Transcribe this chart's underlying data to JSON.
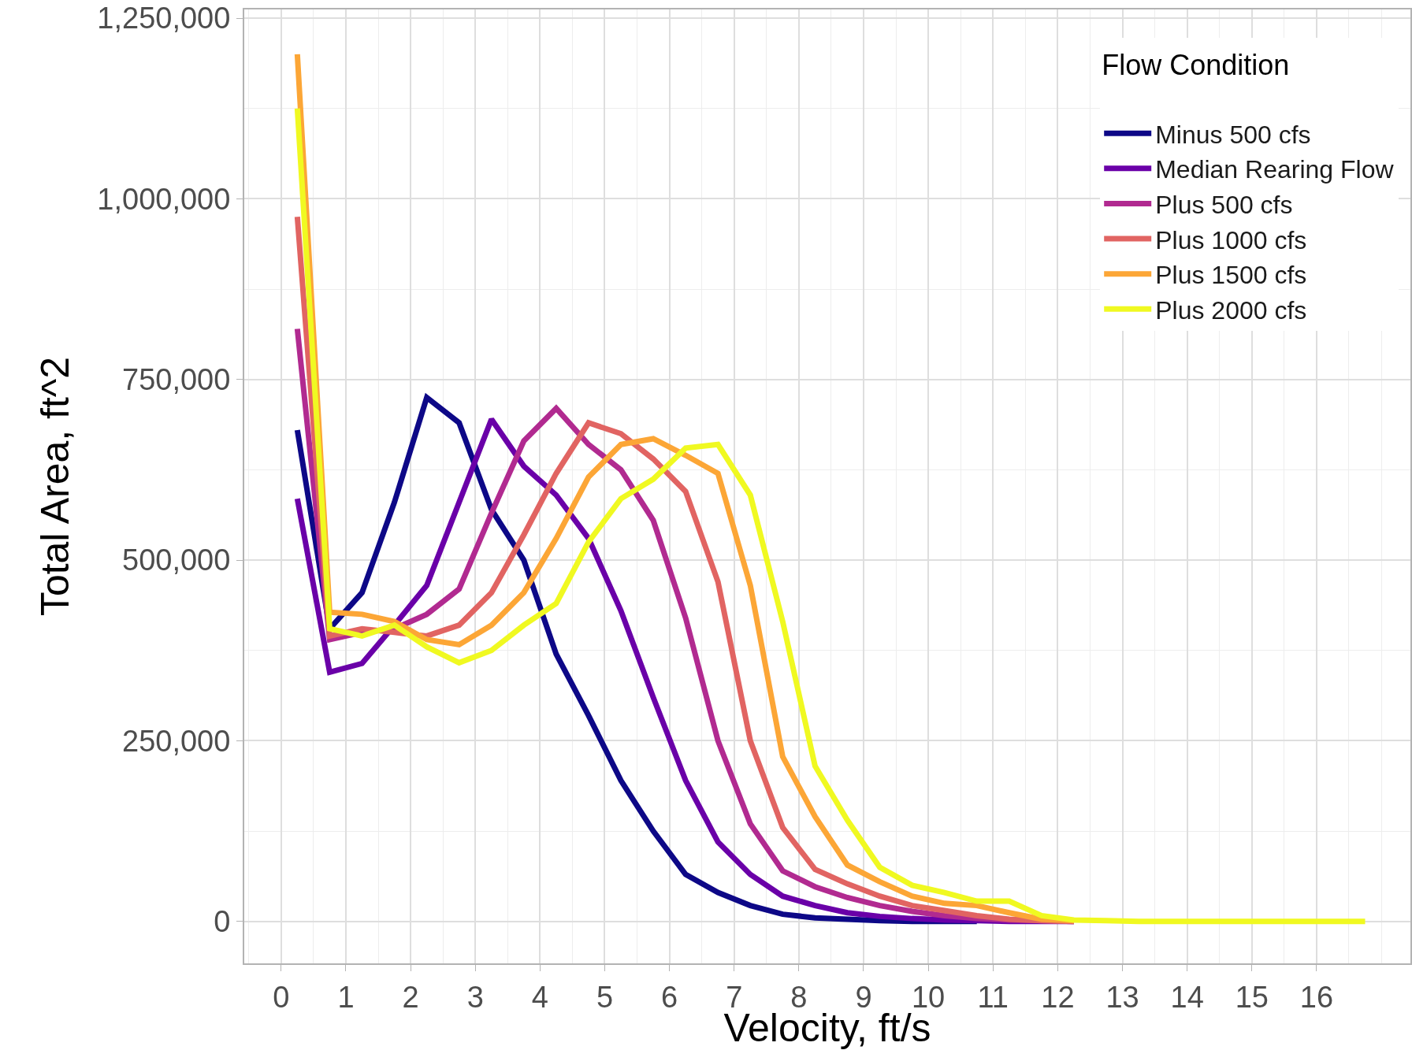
{
  "chart_data": {
    "type": "line",
    "xlabel": "Velocity, ft/s",
    "ylabel": "Total Area, ft^2",
    "legend_title": "Flow Condition",
    "legend": "top right",
    "grid": true,
    "line_style": "solid",
    "marker": "none",
    "x": [
      0.25,
      0.75,
      1.25,
      1.75,
      2.25,
      2.75,
      3.25,
      3.75,
      4.25,
      4.75,
      5.25,
      5.75,
      6.25,
      6.75,
      7.25,
      7.75,
      8.25,
      8.75,
      9.25,
      9.75,
      10.25,
      10.75,
      11.25,
      11.75,
      12.25,
      12.75,
      13.25,
      13.75,
      14.25,
      14.75,
      15.25,
      15.75,
      16.25,
      16.75
    ],
    "xlim": [
      -0.57,
      17.45
    ],
    "xticks": [
      0,
      1,
      2,
      3,
      4,
      5,
      6,
      7,
      8,
      9,
      10,
      11,
      12,
      13,
      14,
      15,
      16
    ],
    "ylim": [
      -58000,
      1262000
    ],
    "yticks": [
      {
        "value": 0,
        "label": "0"
      },
      {
        "value": 250000,
        "label": "250,000"
      },
      {
        "value": 500000,
        "label": "500,000"
      },
      {
        "value": 750000,
        "label": "750,000"
      },
      {
        "value": 1000000,
        "label": "1,000,000"
      },
      {
        "value": 1250000,
        "label": "1,250,000"
      }
    ],
    "series": [
      {
        "name": "Minus 500 cfs",
        "color": "#0d0887",
        "values": [
          680000,
          405000,
          455000,
          580000,
          725000,
          690000,
          570000,
          500000,
          370000,
          285000,
          195000,
          125000,
          65000,
          40000,
          22000,
          10000,
          5000,
          3000,
          1000,
          0,
          0,
          0,
          null,
          null,
          null,
          null,
          null,
          null,
          null,
          null,
          null,
          null,
          null,
          null
        ]
      },
      {
        "name": "Median Rearing Flow",
        "color": "#6a00a8",
        "values": [
          585000,
          345000,
          357000,
          410000,
          465000,
          580000,
          695000,
          630000,
          590000,
          530000,
          430000,
          310000,
          195000,
          110000,
          65000,
          35000,
          22000,
          12000,
          7000,
          4000,
          2000,
          1000,
          0,
          0,
          0,
          null,
          null,
          null,
          null,
          null,
          null,
          null,
          null,
          null
        ]
      },
      {
        "name": "Plus 500 cfs",
        "color": "#b12a90",
        "values": [
          820000,
          390000,
          400000,
          405000,
          425000,
          460000,
          565000,
          665000,
          710000,
          660000,
          625000,
          555000,
          420000,
          250000,
          135000,
          70000,
          48000,
          33000,
          22000,
          14000,
          8000,
          4000,
          2000,
          1000,
          0,
          null,
          null,
          null,
          null,
          null,
          null,
          null,
          null,
          null
        ]
      },
      {
        "name": "Plus 1000 cfs",
        "color": "#e16462",
        "values": [
          975000,
          395000,
          405000,
          400000,
          395000,
          410000,
          455000,
          535000,
          620000,
          690000,
          675000,
          640000,
          595000,
          470000,
          250000,
          130000,
          72000,
          52000,
          35000,
          22000,
          15000,
          8000,
          3000,
          1000,
          0,
          null,
          null,
          null,
          null,
          null,
          null,
          null,
          null,
          null
        ]
      },
      {
        "name": "Plus 1500 cfs",
        "color": "#fca636",
        "values": [
          1200000,
          428000,
          425000,
          415000,
          390000,
          383000,
          410000,
          455000,
          530000,
          615000,
          660000,
          668000,
          645000,
          620000,
          465000,
          228000,
          145000,
          78000,
          55000,
          35000,
          25000,
          22000,
          12000,
          3000,
          1000,
          null,
          null,
          null,
          null,
          null,
          null,
          null,
          null,
          null
        ]
      },
      {
        "name": "Plus 2000 cfs",
        "color": "#f0f921",
        "values": [
          1125000,
          405000,
          395000,
          410000,
          380000,
          358000,
          375000,
          410000,
          440000,
          525000,
          585000,
          612000,
          655000,
          660000,
          590000,
          415000,
          215000,
          140000,
          75000,
          50000,
          40000,
          28000,
          28000,
          8000,
          2000,
          1000,
          0,
          0,
          0,
          0,
          0,
          0,
          0,
          0
        ]
      }
    ]
  }
}
